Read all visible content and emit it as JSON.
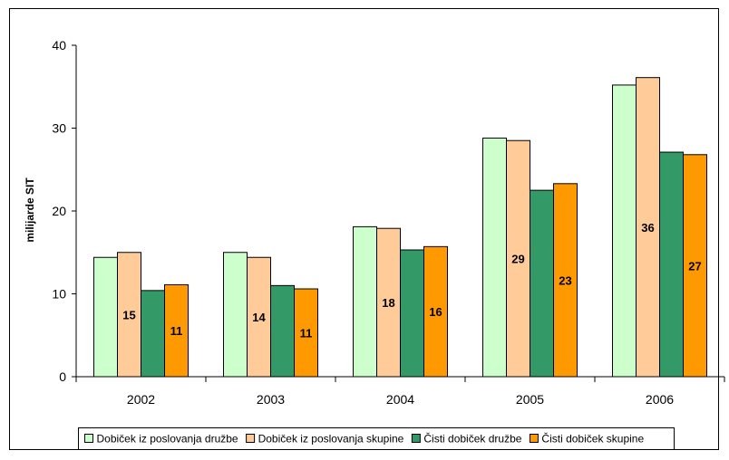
{
  "chart_data": {
    "type": "bar",
    "title": "",
    "xlabel": "",
    "ylabel": "milijarde SIT",
    "ylim": [
      0,
      40
    ],
    "yticks": [
      0,
      10,
      20,
      30,
      40
    ],
    "grid": false,
    "legend_position": "bottom",
    "categories": [
      "2002",
      "2003",
      "2004",
      "2005",
      "2006"
    ],
    "series": [
      {
        "name": "Dobiček iz poslovanja družbe",
        "color": "#ccffcc",
        "values": [
          14.4,
          15.0,
          18.1,
          28.8,
          35.2
        ]
      },
      {
        "name": "Dobiček iz poslovanja skupine",
        "color": "#ffcc99",
        "values": [
          15.0,
          14.4,
          17.9,
          28.5,
          36.1
        ]
      },
      {
        "name": "Čisti dobiček družbe",
        "color": "#339966",
        "values": [
          10.4,
          11.0,
          15.3,
          22.5,
          27.1
        ]
      },
      {
        "name": "Čisti dobiček skupine",
        "color": "#ff9900",
        "values": [
          11.1,
          10.6,
          15.7,
          23.3,
          26.8
        ]
      }
    ],
    "data_labels": [
      {
        "category": "2002",
        "series": 1,
        "text": "15"
      },
      {
        "category": "2002",
        "series": 3,
        "text": "11"
      },
      {
        "category": "2003",
        "series": 1,
        "text": "14"
      },
      {
        "category": "2003",
        "series": 3,
        "text": "11"
      },
      {
        "category": "2004",
        "series": 1,
        "text": "18"
      },
      {
        "category": "2004",
        "series": 3,
        "text": "16"
      },
      {
        "category": "2005",
        "series": 1,
        "text": "29"
      },
      {
        "category": "2005",
        "series": 3,
        "text": "23"
      },
      {
        "category": "2006",
        "series": 1,
        "text": "36"
      },
      {
        "category": "2006",
        "series": 3,
        "text": "27"
      }
    ]
  }
}
